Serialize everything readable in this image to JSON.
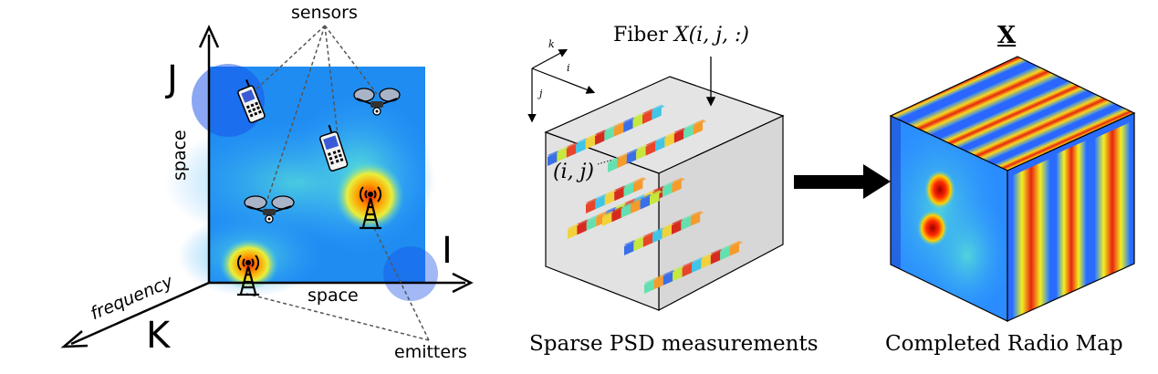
{
  "left_panel": {
    "sensors_label": "sensors",
    "emitters_label": "emitters",
    "axis_j": "J",
    "axis_i": "I",
    "axis_k": "K",
    "space_vertical": "space",
    "space_horizontal": "space",
    "frequency_label": "frequency"
  },
  "middle_panel": {
    "fiber_label_prefix": "Fiber ",
    "fiber_label_math": "X(i, j, :)",
    "axis_k": "k",
    "axis_i": "i",
    "axis_j": "j",
    "index_label": "(i, j)",
    "caption": "Sparse PSD measurements"
  },
  "right_panel": {
    "tensor_label": "X",
    "caption": "Completed Radio Map"
  },
  "colors": {
    "jet_low": "#1a3cff",
    "jet_mid": "#27d3e6",
    "jet_high": "#e31a1c",
    "cube_face": "#e6e6e6"
  }
}
